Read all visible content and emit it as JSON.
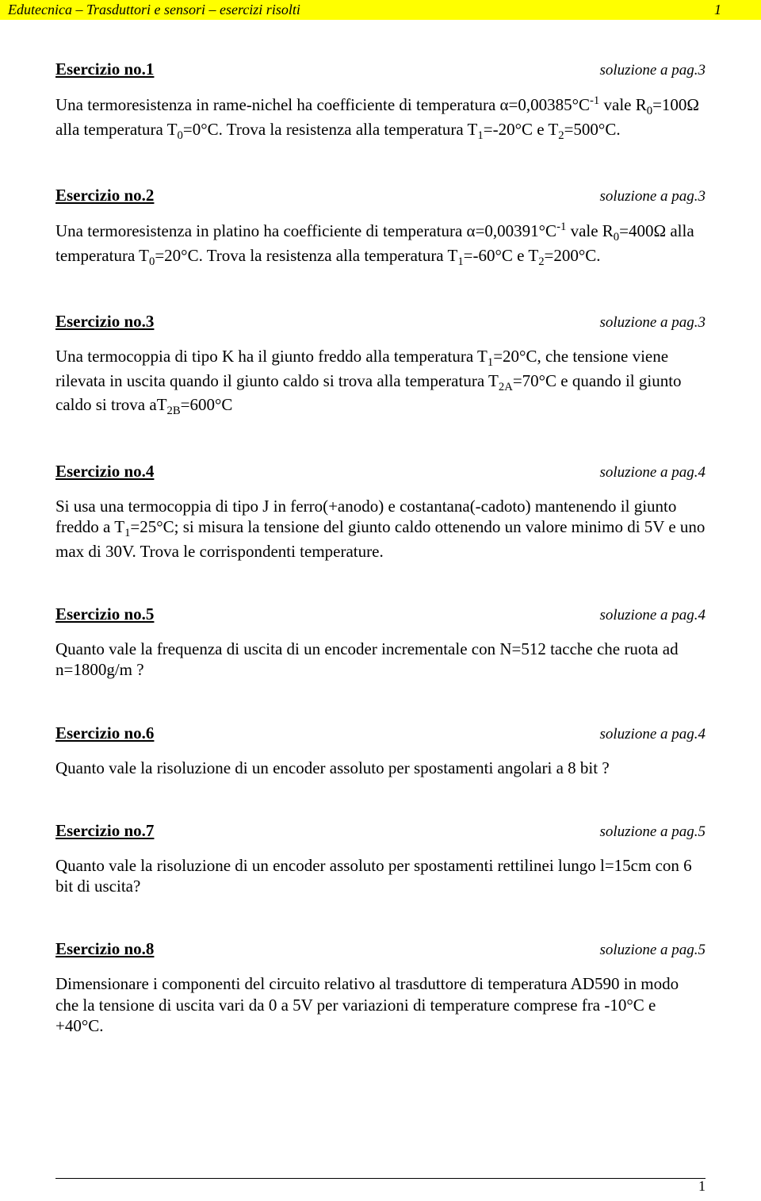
{
  "header": {
    "title": "Edutecnica – Trasduttori e sensori – esercizi risolti",
    "page_number_top": "1",
    "page_number_bottom": "1"
  },
  "exercises": [
    {
      "title": "Esercizio no.1",
      "solution_ref": "soluzione a pag.3",
      "body_html": "Una termoresistenza in rame-nichel ha coefficiente di temperatura α=0,00385°C<sup>-1</sup> vale R<sub>0</sub>=100Ω alla temperatura T<sub>0</sub>=0°C. Trova la resistenza alla temperatura  T<sub>1</sub>=-20°C e T<sub>2</sub>=500°C."
    },
    {
      "title": "Esercizio no.2",
      "solution_ref": "soluzione a pag.3",
      "body_html": "Una termoresistenza in platino ha coefficiente di temperatura α=0,00391°C<sup>-1</sup> vale R<sub>0</sub>=400Ω alla temperatura T<sub>0</sub>=20°C. Trova la resistenza alla temperatura  T<sub>1</sub>=-60°C e T<sub>2</sub>=200°C."
    },
    {
      "title": "Esercizio no.3",
      "solution_ref": "soluzione a pag.3",
      "body_html": "Una termocoppia di tipo K ha il giunto freddo alla temperatura T<sub>1</sub>=20°C, che tensione viene rilevata in uscita quando il giunto caldo si trova alla temperatura T<sub>2A</sub>=70°C e quando il giunto caldo si trova aT<sub>2B</sub>=600°C"
    },
    {
      "title": "Esercizio no.4",
      "solution_ref": "soluzione a pag.4",
      "body_html": "Si usa una termocoppia di tipo J in ferro(+anodo) e costantana(-cadoto) mantenendo il giunto freddo a T<sub>1</sub>=25°C; si misura la tensione del giunto caldo ottenendo un valore minimo di 5V e uno max di 30V. Trova le corrispondenti temperature."
    },
    {
      "title": "Esercizio no.5",
      "solution_ref": "soluzione a pag.4",
      "body_html": "Quanto vale la frequenza di uscita di un encoder incrementale con N=512 tacche che ruota ad n=1800g/m ?"
    },
    {
      "title": "Esercizio no.6",
      "solution_ref": "soluzione a pag.4",
      "body_html": "Quanto vale la risoluzione  di un encoder assoluto per spostamenti angolari a 8 bit ?"
    },
    {
      "title": "Esercizio no.7",
      "solution_ref": "soluzione a pag.5",
      "body_html": "Quanto vale la risoluzione  di un encoder assoluto per spostamenti rettilinei lungo l=15cm con 6 bit di uscita?"
    },
    {
      "title": "Esercizio no.8",
      "solution_ref": "soluzione a pag.5",
      "body_html": "Dimensionare i componenti del circuito relativo al trasduttore di temperatura AD590 in modo che la tensione di uscita vari da 0 a 5V per variazioni di temperature comprese fra -10°C e +40°C."
    }
  ]
}
